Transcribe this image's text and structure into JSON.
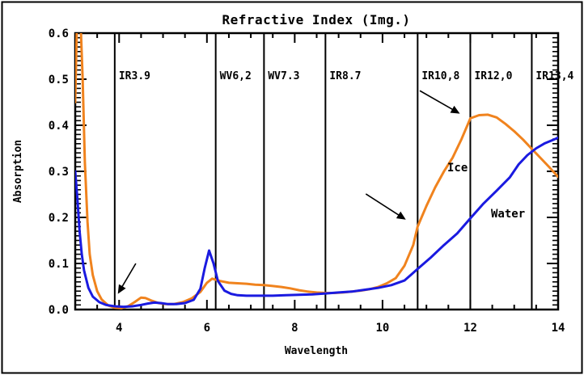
{
  "figure": {
    "background": "#ffffff",
    "border_color": "#000000"
  },
  "chart_data": {
    "type": "line",
    "title": "Refractive Index (Img.)",
    "xlabel": "Wavelength",
    "ylabel": "Absorption",
    "xlim": [
      3,
      14
    ],
    "ylim": [
      0.0,
      0.6
    ],
    "x_ticks": [
      4,
      6,
      8,
      10,
      12,
      14
    ],
    "x_minor_step": 0.5,
    "y_ticks": [
      "0.0",
      "0.1",
      "0.2",
      "0.3",
      "0.4",
      "0.5",
      "0.6"
    ],
    "y_minor_step": 0.01,
    "grid": false,
    "legend_position": "inline-curve-labels",
    "channel_lines": [
      {
        "label": "IR3.9",
        "wavelength": 3.9
      },
      {
        "label": "WV6,2",
        "wavelength": 6.2
      },
      {
        "label": "WV7.3",
        "wavelength": 7.3
      },
      {
        "label": "IR8.7",
        "wavelength": 8.7
      },
      {
        "label": "IR10,8",
        "wavelength": 10.8
      },
      {
        "label": "IR12,0",
        "wavelength": 12.0
      },
      {
        "label": "IR13,4",
        "wavelength": 13.4
      }
    ],
    "series": [
      {
        "name": "Ice",
        "color": "#F0831E",
        "points": [
          [
            3.0,
            0.45
          ],
          [
            3.04,
            0.63
          ],
          [
            3.12,
            0.63
          ],
          [
            3.17,
            0.5
          ],
          [
            3.22,
            0.32
          ],
          [
            3.28,
            0.19
          ],
          [
            3.33,
            0.12
          ],
          [
            3.4,
            0.075
          ],
          [
            3.5,
            0.04
          ],
          [
            3.6,
            0.022
          ],
          [
            3.75,
            0.009
          ],
          [
            3.9,
            0.004
          ],
          [
            4.05,
            0.003
          ],
          [
            4.2,
            0.007
          ],
          [
            4.35,
            0.016
          ],
          [
            4.5,
            0.026
          ],
          [
            4.6,
            0.025
          ],
          [
            4.75,
            0.019
          ],
          [
            4.9,
            0.014
          ],
          [
            5.05,
            0.012
          ],
          [
            5.25,
            0.012
          ],
          [
            5.45,
            0.016
          ],
          [
            5.65,
            0.024
          ],
          [
            5.85,
            0.038
          ],
          [
            6.0,
            0.058
          ],
          [
            6.12,
            0.067
          ],
          [
            6.3,
            0.062
          ],
          [
            6.5,
            0.058
          ],
          [
            6.7,
            0.057
          ],
          [
            6.9,
            0.056
          ],
          [
            7.1,
            0.054
          ],
          [
            7.3,
            0.053
          ],
          [
            7.5,
            0.051
          ],
          [
            7.7,
            0.049
          ],
          [
            7.9,
            0.046
          ],
          [
            8.1,
            0.042
          ],
          [
            8.3,
            0.039
          ],
          [
            8.5,
            0.037
          ],
          [
            8.7,
            0.036
          ],
          [
            8.9,
            0.036
          ],
          [
            9.1,
            0.037
          ],
          [
            9.3,
            0.039
          ],
          [
            9.5,
            0.041
          ],
          [
            9.7,
            0.044
          ],
          [
            9.9,
            0.049
          ],
          [
            10.1,
            0.057
          ],
          [
            10.3,
            0.068
          ],
          [
            10.5,
            0.095
          ],
          [
            10.7,
            0.14
          ],
          [
            10.8,
            0.18
          ],
          [
            11.0,
            0.225
          ],
          [
            11.2,
            0.265
          ],
          [
            11.4,
            0.3
          ],
          [
            11.6,
            0.33
          ],
          [
            11.8,
            0.37
          ],
          [
            12.0,
            0.415
          ],
          [
            12.2,
            0.422
          ],
          [
            12.4,
            0.423
          ],
          [
            12.6,
            0.417
          ],
          [
            12.8,
            0.403
          ],
          [
            13.0,
            0.387
          ],
          [
            13.2,
            0.369
          ],
          [
            13.4,
            0.349
          ],
          [
            13.6,
            0.329
          ],
          [
            13.8,
            0.309
          ],
          [
            14.0,
            0.288
          ]
        ]
      },
      {
        "name": "Water",
        "color": "#1A1AE0",
        "points": [
          [
            3.0,
            0.3
          ],
          [
            3.05,
            0.24
          ],
          [
            3.1,
            0.17
          ],
          [
            3.15,
            0.12
          ],
          [
            3.2,
            0.085
          ],
          [
            3.3,
            0.047
          ],
          [
            3.4,
            0.028
          ],
          [
            3.55,
            0.016
          ],
          [
            3.7,
            0.01
          ],
          [
            3.9,
            0.007
          ],
          [
            4.1,
            0.006
          ],
          [
            4.3,
            0.007
          ],
          [
            4.5,
            0.01
          ],
          [
            4.65,
            0.013
          ],
          [
            4.8,
            0.015
          ],
          [
            4.95,
            0.014
          ],
          [
            5.1,
            0.012
          ],
          [
            5.3,
            0.012
          ],
          [
            5.5,
            0.014
          ],
          [
            5.7,
            0.021
          ],
          [
            5.85,
            0.045
          ],
          [
            5.95,
            0.09
          ],
          [
            6.05,
            0.128
          ],
          [
            6.15,
            0.1
          ],
          [
            6.25,
            0.062
          ],
          [
            6.4,
            0.041
          ],
          [
            6.55,
            0.034
          ],
          [
            6.7,
            0.031
          ],
          [
            6.9,
            0.03
          ],
          [
            7.2,
            0.03
          ],
          [
            7.5,
            0.03
          ],
          [
            7.8,
            0.031
          ],
          [
            8.1,
            0.032
          ],
          [
            8.4,
            0.033
          ],
          [
            8.7,
            0.035
          ],
          [
            9.0,
            0.037
          ],
          [
            9.3,
            0.039
          ],
          [
            9.6,
            0.043
          ],
          [
            9.9,
            0.047
          ],
          [
            10.2,
            0.053
          ],
          [
            10.5,
            0.063
          ],
          [
            10.8,
            0.088
          ],
          [
            11.1,
            0.113
          ],
          [
            11.4,
            0.14
          ],
          [
            11.7,
            0.165
          ],
          [
            12.0,
            0.198
          ],
          [
            12.3,
            0.23
          ],
          [
            12.6,
            0.258
          ],
          [
            12.9,
            0.287
          ],
          [
            13.1,
            0.315
          ],
          [
            13.3,
            0.335
          ],
          [
            13.5,
            0.35
          ],
          [
            13.7,
            0.361
          ],
          [
            13.9,
            0.369
          ],
          [
            14.0,
            0.373
          ]
        ]
      }
    ],
    "series_labels": {
      "ice": "Ice",
      "water": "Water"
    },
    "annotations": {
      "arrows": [
        {
          "from": [
            4.38,
            0.1
          ],
          "to": [
            3.99,
            0.037
          ]
        },
        {
          "from": [
            9.62,
            0.251
          ],
          "to": [
            10.5,
            0.197
          ]
        },
        {
          "from": [
            10.85,
            0.475
          ],
          "to": [
            11.73,
            0.427
          ]
        }
      ]
    },
    "axis_color": "#000000"
  }
}
